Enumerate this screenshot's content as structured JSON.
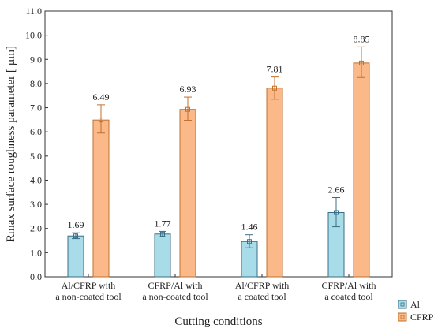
{
  "chart_data": {
    "type": "bar",
    "xlabel": "Cutting conditions",
    "ylabel": "Rmax surface roughness parameter [ µm]",
    "ylim": [
      0,
      11
    ],
    "yticks": [
      "0.0",
      "1.0",
      "2.0",
      "3.0",
      "4.0",
      "5.0",
      "6.0",
      "7.0",
      "8.0",
      "9.0",
      "10.0",
      "11.0"
    ],
    "grid": false,
    "legend_position": "bottom-right",
    "categories": [
      [
        "Al/CFRP with",
        "a non-coated tool"
      ],
      [
        "CFRP/Al with",
        "a non-coated tool"
      ],
      [
        "Al/CFRP with",
        "a coated tool"
      ],
      [
        "CFRP/Al with",
        "a coated tool"
      ]
    ],
    "series": [
      {
        "name": "Al",
        "color": "#a8dce8",
        "edge": "#3a6e86",
        "values": [
          1.69,
          1.77,
          1.46,
          2.66
        ],
        "labels": [
          "1.69",
          "1.77",
          "1.46",
          "2.66"
        ],
        "error_low": [
          1.58,
          1.66,
          1.2,
          2.07
        ],
        "error_high": [
          1.82,
          1.88,
          1.74,
          3.28
        ]
      },
      {
        "name": "CFRP",
        "color": "#fbb98a",
        "edge": "#c0712e",
        "values": [
          6.49,
          6.93,
          7.81,
          8.85
        ],
        "labels": [
          "6.49",
          "6.93",
          "7.81",
          "8.85"
        ],
        "error_low": [
          5.95,
          6.48,
          7.35,
          8.25
        ],
        "error_high": [
          7.12,
          7.44,
          8.27,
          9.52
        ]
      }
    ]
  }
}
